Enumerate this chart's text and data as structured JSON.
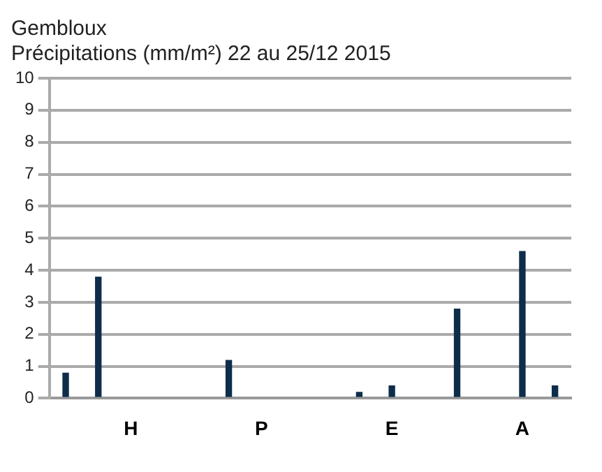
{
  "chart_data": {
    "type": "bar",
    "title": "Gembloux",
    "subtitle": "Précipitations (mm/m²) 22 au 25/12 2015",
    "categories": [
      null,
      null,
      "H",
      null,
      null,
      null,
      "P",
      null,
      null,
      null,
      "E",
      null,
      null,
      null,
      "A",
      null
    ],
    "values": [
      0.8,
      3.8,
      0,
      0,
      0,
      1.2,
      0,
      0,
      0,
      0.2,
      0.4,
      0,
      2.8,
      0,
      4.6,
      0.4
    ],
    "color": "#0d2d4a",
    "ylim": [
      0,
      10
    ],
    "yticks": [
      0,
      1,
      2,
      3,
      4,
      5,
      6,
      7,
      8,
      9,
      10
    ],
    "grid": "y"
  }
}
